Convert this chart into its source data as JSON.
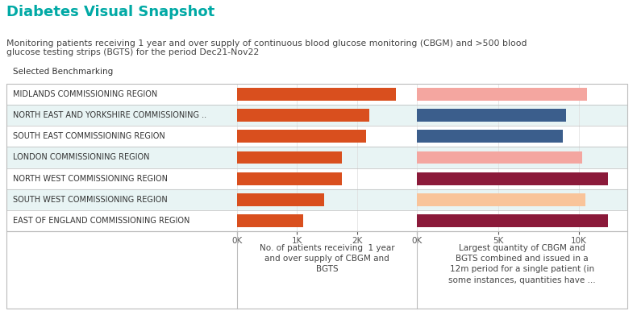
{
  "title": "Diabetes Visual Snapshot",
  "subtitle": "Monitoring patients receiving 1 year and over supply of continuous blood glucose monitoring (CBGM) and >500 blood\nglucose testing strips (BGTS) for the period Dec21-Nov22",
  "title_color": "#00A9A5",
  "regions": [
    "MIDLANDS COMMISSIONING REGION",
    "NORTH EAST AND YORKSHIRE COMMISSIONING ..",
    "SOUTH EAST COMMISSIONING REGION",
    "LONDON COMMISSIONING REGION",
    "NORTH WEST COMMISSIONING REGION",
    "SOUTH WEST COMMISSIONING REGION",
    "EAST OF ENGLAND COMMISSIONING REGION"
  ],
  "left_values": [
    2650,
    2200,
    2150,
    1750,
    1750,
    1450,
    1100
  ],
  "right_values": [
    10500,
    9200,
    9000,
    10200,
    11800,
    10400,
    11800
  ],
  "left_colors": [
    "#D94F1E",
    "#D94F1E",
    "#D94F1E",
    "#D94F1E",
    "#D94F1E",
    "#D94F1E",
    "#D94F1E"
  ],
  "right_colors": [
    "#F4A6A0",
    "#3B5E8C",
    "#3B5E8C",
    "#F4A6A0",
    "#8B1A3A",
    "#F9C49A",
    "#8B1A3A"
  ],
  "left_xlim": [
    0,
    3000
  ],
  "right_xlim": [
    0,
    13000
  ],
  "left_xticks": [
    0,
    1000,
    2000
  ],
  "left_xticklabels": [
    "0K",
    "1K",
    "2K"
  ],
  "right_xticks": [
    0,
    5000,
    10000
  ],
  "right_xticklabels": [
    "0K",
    "5K",
    "10K"
  ],
  "left_xlabel": "No. of patients receiving  1 year\nand over supply of CBGM and\nBGTS",
  "right_xlabel": "Largest quantity of CBGM and\nBGTS combined and issued in a\n12m period for a single patient (in\nsome instances, quantities have ...",
  "benchmarking_label": "Selected Benchmarking",
  "row_bg_colors": [
    "#FFFFFF",
    "#E8F4F4",
    "#FFFFFF",
    "#E8F4F4",
    "#FFFFFF",
    "#E8F4F4",
    "#FFFFFF"
  ],
  "bar_height": 0.6,
  "tick_fontsize": 7.5,
  "label_fontsize": 7.5,
  "region_fontsize": 7.0
}
